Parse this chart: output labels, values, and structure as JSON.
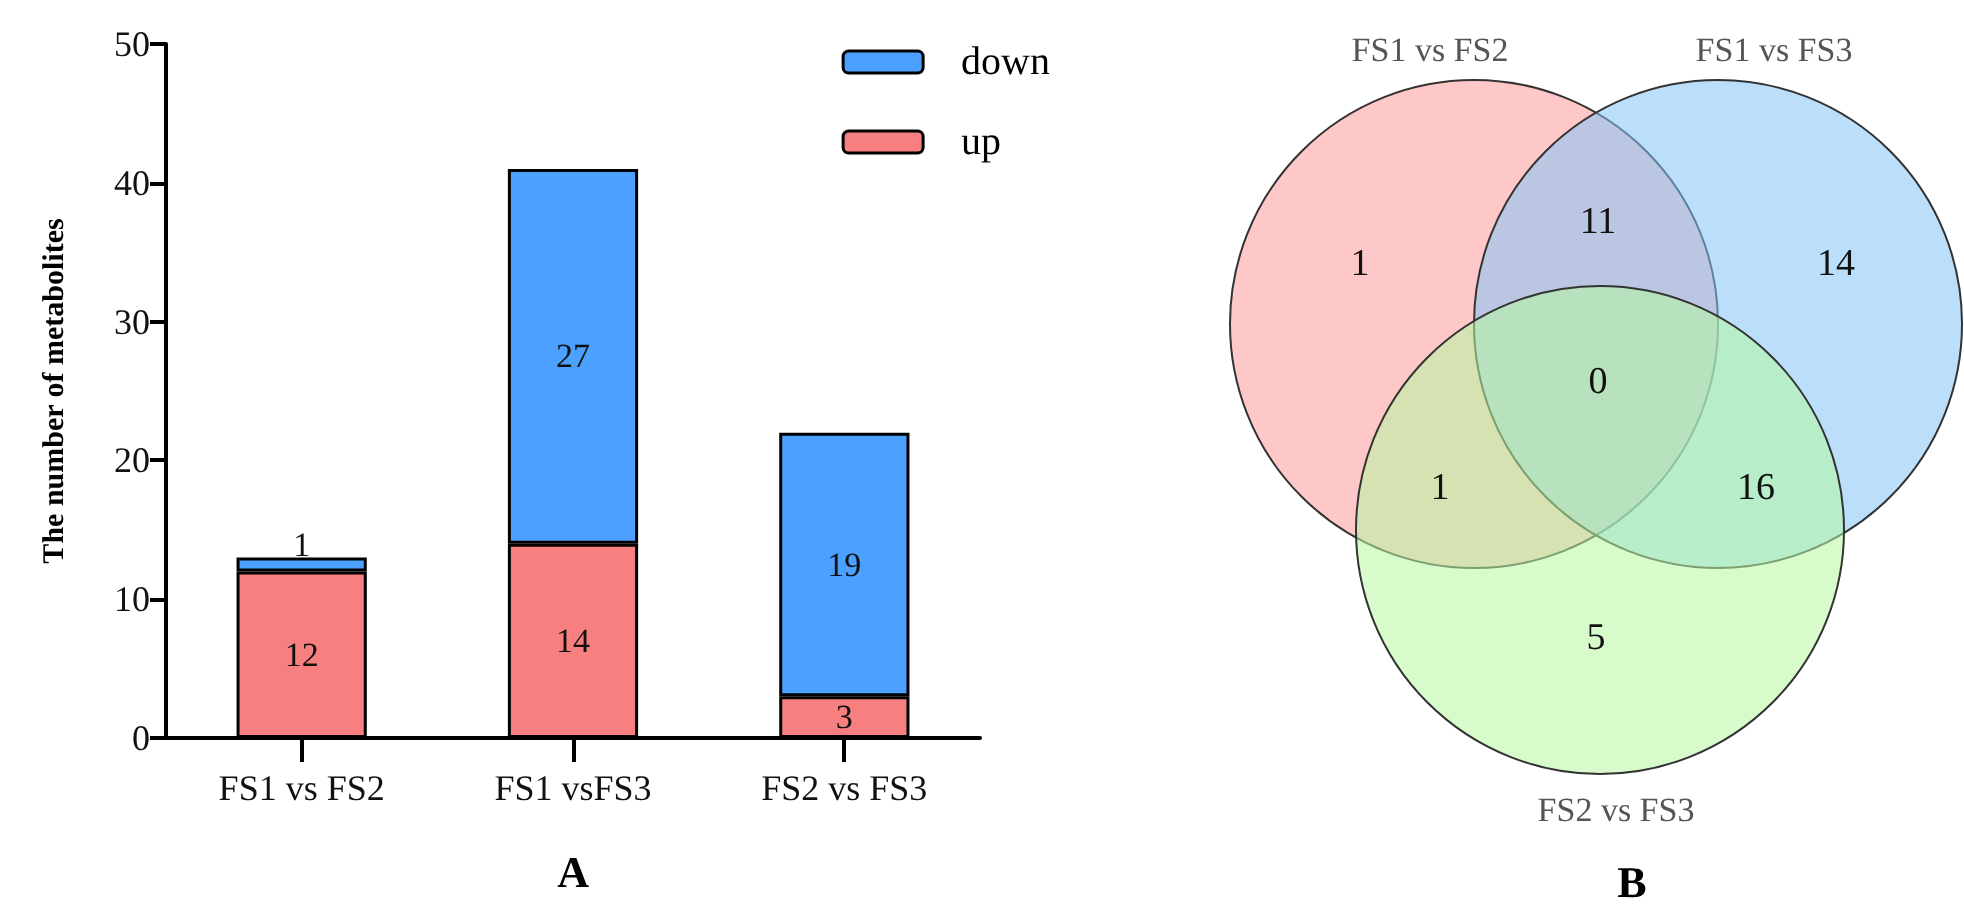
{
  "chart_data": [
    {
      "type": "bar",
      "stacked": true,
      "xlabel": "A",
      "ylabel": "The number of metabolites",
      "categories": [
        "FS1 vs FS2",
        "FS1 vsFS3",
        "FS2 vs FS3"
      ],
      "series": [
        {
          "name": "up",
          "color": "#f87f7f",
          "values": [
            12,
            14,
            3
          ]
        },
        {
          "name": "down",
          "color": "#4ca0ff",
          "values": [
            1,
            27,
            19
          ]
        }
      ],
      "ylim": [
        0,
        50
      ],
      "yticks": [
        0,
        10,
        20,
        30,
        40,
        50
      ],
      "grid": false,
      "legend": "top right",
      "data_labels": true
    },
    {
      "type": "other",
      "xlabel": "B",
      "categories": [
        "FS1 vs FS2",
        "FS1 vs FS3",
        "FS2 vs FS3"
      ],
      "colors": [
        "#ff9a9a",
        "#84c4f7",
        "#b6f7a0"
      ],
      "annotations": [
        "1",
        "14",
        "5",
        "11",
        "1",
        "16",
        "0"
      ]
    }
  ]
}
